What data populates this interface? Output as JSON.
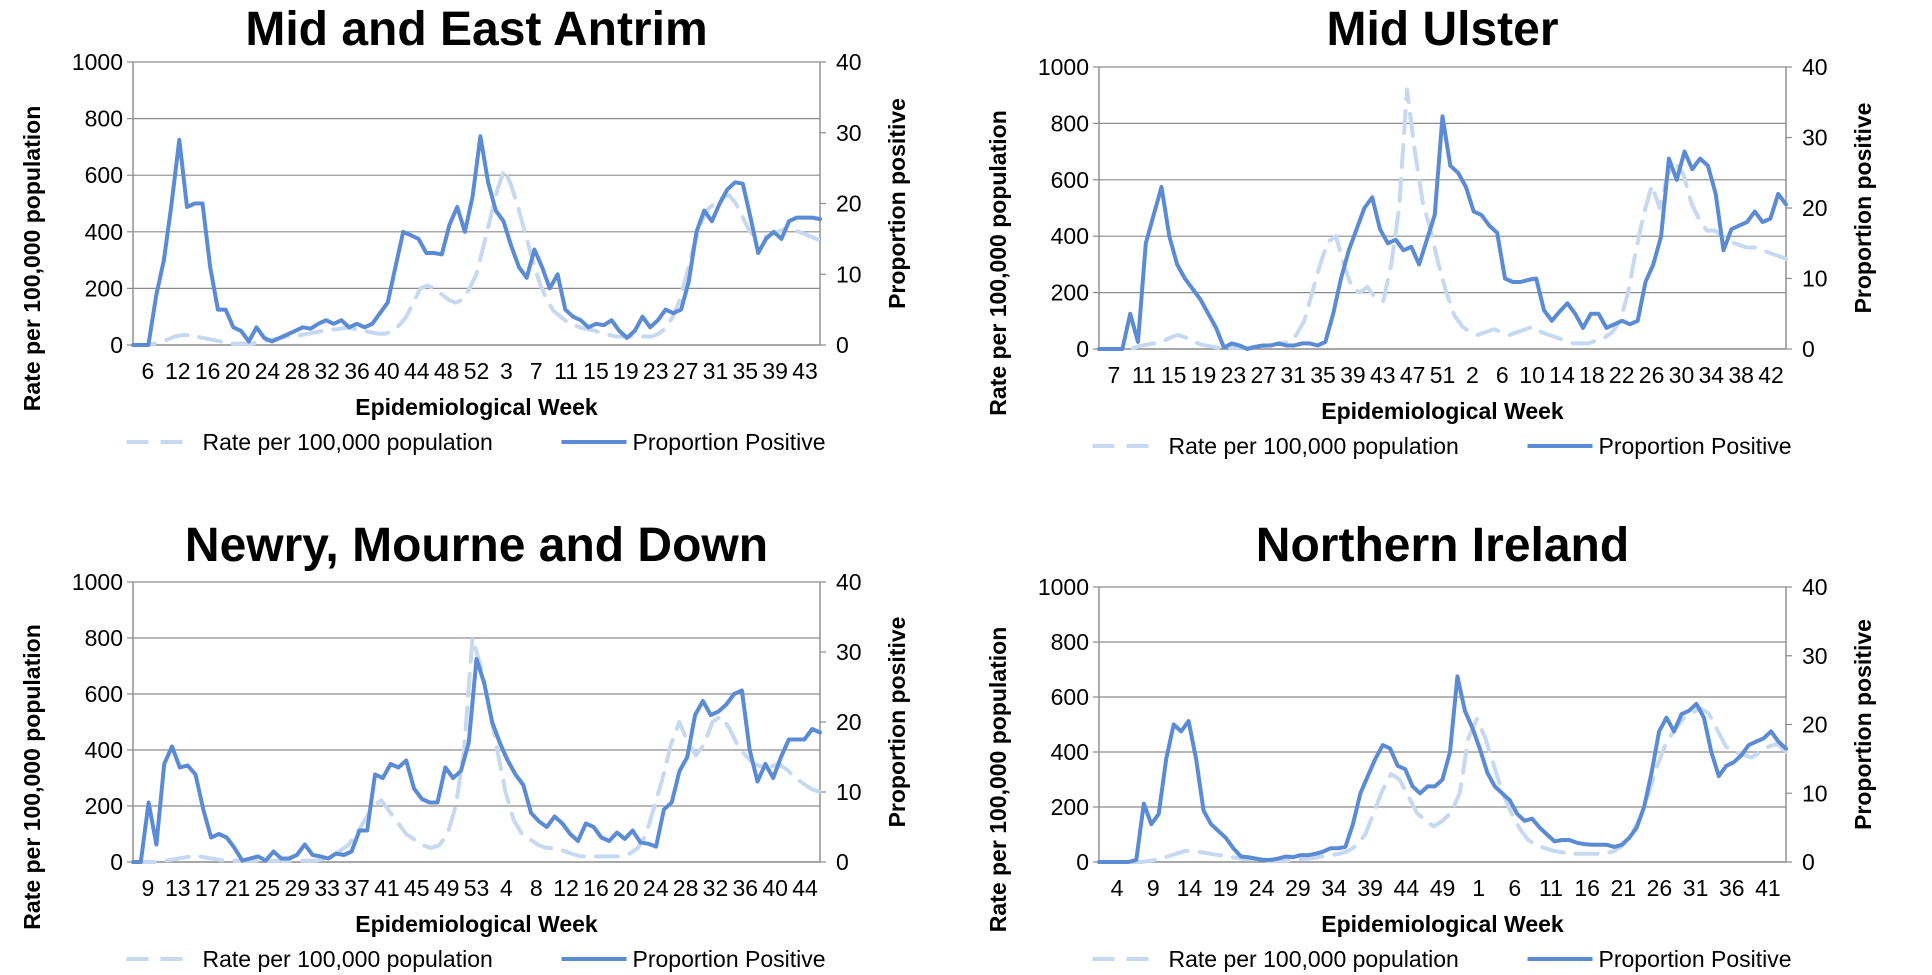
{
  "chart_data": [
    {
      "type": "line",
      "title": "Mid and East Antrim",
      "xlabel": "Epidemiological Week",
      "ylabel": "Rate per 100,000 population",
      "y2label": "Proportion positive",
      "ylim": [
        0,
        1000
      ],
      "y2lim": [
        0,
        40
      ],
      "yticks": [
        "0",
        "200",
        "400",
        "600",
        "800",
        "1000"
      ],
      "y2ticks": [
        "0",
        "10",
        "20",
        "30",
        "40"
      ],
      "x_tick_labels": [
        "6",
        "12",
        "16",
        "20",
        "24",
        "28",
        "32",
        "36",
        "40",
        "44",
        "48",
        "52",
        "3",
        "7",
        "11",
        "15",
        "19",
        "23",
        "27",
        "31",
        "35",
        "39",
        "43"
      ],
      "grid": true,
      "legend_position": "bottom",
      "series": [
        {
          "name": "Rate per 100,000 population",
          "axis": "left",
          "style": "dashed",
          "color": "#c6d9f1",
          "values": [
            0,
            0,
            0,
            5,
            10,
            20,
            30,
            35,
            35,
            30,
            25,
            20,
            15,
            10,
            5,
            5,
            5,
            5,
            10,
            15,
            20,
            25,
            30,
            30,
            35,
            40,
            45,
            50,
            55,
            55,
            60,
            60,
            55,
            50,
            45,
            40,
            40,
            50,
            70,
            100,
            150,
            200,
            210,
            200,
            180,
            160,
            150,
            160,
            200,
            250,
            350,
            450,
            550,
            620,
            560,
            480,
            390,
            300,
            220,
            160,
            120,
            100,
            80,
            70,
            60,
            55,
            50,
            40,
            35,
            30,
            30,
            30,
            30,
            30,
            30,
            40,
            60,
            100,
            160,
            250,
            350,
            430,
            480,
            500,
            520,
            530,
            500,
            450,
            400,
            380,
            380,
            390,
            400,
            410,
            410,
            400,
            390,
            380,
            370
          ]
        },
        {
          "name": "Proportion Positive",
          "axis": "right",
          "style": "solid",
          "color": "#5b8bd5",
          "values": [
            0,
            0,
            0,
            7,
            12,
            20,
            29,
            19.5,
            20,
            20,
            11,
            5,
            5,
            2.5,
            2,
            0.5,
            2.5,
            1,
            0.5,
            1,
            1.5,
            2,
            2.5,
            2.3,
            3,
            3.5,
            3,
            3.5,
            2.5,
            3,
            2.5,
            3,
            4.5,
            6,
            11,
            16,
            15.5,
            15,
            13,
            13,
            12.8,
            17,
            19.5,
            16,
            21,
            29.5,
            23,
            19,
            17.5,
            14,
            11,
            9.5,
            13.5,
            11,
            8,
            10,
            5,
            4,
            3.5,
            2.5,
            3,
            2.8,
            3.5,
            2,
            1,
            2,
            4,
            2.5,
            3.5,
            5,
            4.5,
            5,
            9,
            16,
            19,
            17.5,
            20,
            22,
            23,
            22.8,
            18,
            13,
            15,
            16,
            15,
            17.5,
            18,
            18,
            18,
            17.8
          ]
        }
      ]
    },
    {
      "type": "line",
      "title": "Mid Ulster",
      "xlabel": "Epidemiological Week",
      "ylabel": "Rate per 100,000 population",
      "y2label": "Proportion positive",
      "ylim": [
        0,
        1000
      ],
      "y2lim": [
        0,
        40
      ],
      "yticks": [
        "0",
        "200",
        "400",
        "600",
        "800",
        "1000"
      ],
      "y2ticks": [
        "0",
        "10",
        "20",
        "30",
        "40"
      ],
      "x_tick_labels": [
        "7",
        "11",
        "15",
        "19",
        "23",
        "27",
        "31",
        "35",
        "39",
        "43",
        "47",
        "51",
        "2",
        "6",
        "10",
        "14",
        "18",
        "22",
        "26",
        "30",
        "34",
        "38",
        "42"
      ],
      "grid": true,
      "legend_position": "bottom",
      "series": [
        {
          "name": "Rate per 100,000 population",
          "axis": "left",
          "style": "dashed",
          "color": "#c6d9f1",
          "values": [
            0,
            0,
            0,
            0,
            0,
            10,
            15,
            20,
            25,
            40,
            50,
            40,
            25,
            15,
            10,
            5,
            5,
            5,
            5,
            5,
            10,
            10,
            15,
            20,
            25,
            50,
            100,
            200,
            300,
            380,
            400,
            300,
            220,
            200,
            220,
            180,
            170,
            300,
            500,
            920,
            700,
            520,
            420,
            300,
            200,
            120,
            80,
            60,
            50,
            60,
            70,
            60,
            50,
            60,
            70,
            80,
            60,
            50,
            40,
            30,
            20,
            20,
            20,
            30,
            40,
            60,
            100,
            200,
            350,
            480,
            580,
            500,
            620,
            660,
            620,
            520,
            460,
            420,
            420,
            400,
            380,
            370,
            360,
            360,
            350,
            340,
            330,
            320
          ]
        },
        {
          "name": "Proportion Positive",
          "axis": "right",
          "style": "solid",
          "color": "#5b8bd5",
          "values": [
            0,
            0,
            0,
            0,
            5,
            1,
            15,
            19,
            23,
            16,
            12,
            10,
            8.5,
            7,
            5,
            3,
            0.2,
            0.8,
            0.5,
            0,
            0.3,
            0.5,
            0.5,
            0.8,
            0.5,
            0.5,
            0.8,
            0.8,
            0.5,
            1,
            5,
            10,
            14,
            17,
            20,
            21.5,
            17,
            15,
            15.5,
            14,
            14.5,
            12,
            15.5,
            19,
            33,
            26,
            25,
            23,
            19.5,
            19,
            17.5,
            16.5,
            10,
            9.5,
            9.5,
            9.8,
            10,
            5.5,
            4,
            5.3,
            6.5,
            5,
            3,
            5,
            5,
            3,
            3.5,
            4,
            3.5,
            4,
            9.5,
            12,
            16,
            27,
            24,
            28,
            25.5,
            27,
            26,
            22,
            14,
            17,
            17.5,
            18,
            19.5,
            18,
            18.5,
            22,
            20.5
          ]
        }
      ]
    },
    {
      "type": "line",
      "title": "Newry, Mourne and Down",
      "xlabel": "Epidemiological Week",
      "ylabel": "Rate per 100,000 population",
      "y2label": "Proportion positive",
      "ylim": [
        0,
        1000
      ],
      "y2lim": [
        0,
        40
      ],
      "yticks": [
        "0",
        "200",
        "400",
        "600",
        "800",
        "1000"
      ],
      "y2ticks": [
        "0",
        "10",
        "20",
        "30",
        "40"
      ],
      "x_tick_labels": [
        "9",
        "13",
        "17",
        "21",
        "25",
        "29",
        "33",
        "37",
        "41",
        "45",
        "49",
        "53",
        "4",
        "8",
        "12",
        "16",
        "20",
        "24",
        "28",
        "32",
        "36",
        "40",
        "44"
      ],
      "grid": true,
      "legend_position": "bottom",
      "series": [
        {
          "name": "Rate per 100,000 population",
          "axis": "left",
          "style": "dashed",
          "color": "#c6d9f1",
          "values": [
            0,
            0,
            0,
            0,
            5,
            10,
            15,
            20,
            20,
            15,
            10,
            5,
            5,
            5,
            5,
            5,
            5,
            5,
            5,
            5,
            5,
            5,
            5,
            10,
            20,
            40,
            60,
            100,
            150,
            200,
            220,
            180,
            140,
            100,
            80,
            60,
            50,
            60,
            100,
            200,
            400,
            800,
            700,
            560,
            400,
            250,
            150,
            100,
            80,
            60,
            50,
            50,
            40,
            30,
            20,
            20,
            20,
            20,
            20,
            20,
            30,
            50,
            100,
            200,
            300,
            420,
            500,
            430,
            380,
            420,
            500,
            520,
            480,
            420,
            380,
            350,
            340,
            340,
            350,
            330,
            300,
            280,
            260,
            250
          ]
        },
        {
          "name": "Proportion Positive",
          "axis": "right",
          "style": "solid",
          "color": "#5b8bd5",
          "values": [
            0,
            0,
            8.5,
            2.5,
            14,
            16.5,
            13.5,
            13.8,
            12.5,
            7.5,
            3.5,
            4,
            3.5,
            2,
            0.2,
            0.5,
            0.8,
            0.2,
            1.5,
            0.5,
            0.5,
            1,
            2.5,
            1,
            0.8,
            0.5,
            1.2,
            1,
            1.5,
            4.5,
            4.5,
            12.5,
            12,
            14,
            13.5,
            14.5,
            10.5,
            9,
            8.5,
            8.5,
            13.5,
            12,
            13,
            17,
            29,
            25.5,
            20,
            17,
            14.5,
            12.5,
            11,
            7,
            5.8,
            5,
            6.5,
            5.5,
            4,
            3,
            5.5,
            5,
            3.5,
            3,
            4.2,
            3.3,
            4.5,
            2.8,
            2.6,
            2.2,
            7.5,
            8.5,
            13,
            15,
            21,
            23,
            21,
            21.5,
            22.5,
            24,
            24.5,
            16,
            11.5,
            14,
            12,
            15,
            17.5,
            17.5,
            17.5,
            19,
            18.5
          ]
        }
      ]
    },
    {
      "type": "line",
      "title": "Northern Ireland",
      "xlabel": "Epidemiological Week",
      "ylabel": "Rate per 100,000 population",
      "y2label": "Proportion positive",
      "ylim": [
        0,
        1000
      ],
      "y2lim": [
        0,
        40
      ],
      "yticks": [
        "0",
        "200",
        "400",
        "600",
        "800",
        "1000"
      ],
      "y2ticks": [
        "0",
        "10",
        "20",
        "30",
        "40"
      ],
      "x_tick_labels": [
        "4",
        "9",
        "14",
        "19",
        "24",
        "29",
        "34",
        "39",
        "44",
        "49",
        "1",
        "6",
        "11",
        "16",
        "21",
        "26",
        "31",
        "36",
        "41"
      ],
      "grid": true,
      "legend_position": "bottom",
      "series": [
        {
          "name": "Rate per 100,000 population",
          "axis": "left",
          "style": "dashed",
          "color": "#c6d9f1",
          "values": [
            0,
            0,
            0,
            0,
            0,
            0,
            5,
            10,
            20,
            30,
            40,
            40,
            35,
            30,
            25,
            20,
            15,
            10,
            10,
            5,
            5,
            5,
            5,
            10,
            10,
            15,
            20,
            25,
            30,
            40,
            60,
            100,
            180,
            260,
            320,
            300,
            240,
            180,
            150,
            130,
            150,
            180,
            250,
            450,
            520,
            450,
            350,
            250,
            180,
            120,
            80,
            60,
            50,
            40,
            35,
            30,
            30,
            30,
            30,
            30,
            40,
            60,
            100,
            160,
            250,
            350,
            430,
            480,
            520,
            540,
            560,
            540,
            480,
            420,
            400,
            390,
            380,
            400,
            420,
            430,
            400
          ]
        },
        {
          "name": "Proportion Positive",
          "axis": "right",
          "style": "solid",
          "color": "#5b8bd5",
          "values": [
            0,
            0,
            0,
            0,
            0,
            0.3,
            8.5,
            5.5,
            7,
            15,
            20,
            19,
            20.5,
            15,
            7.5,
            5.5,
            4.5,
            3.5,
            2,
            0.8,
            0.7,
            0.5,
            0.3,
            0.3,
            0.5,
            0.8,
            0.7,
            1,
            1,
            1.2,
            1.5,
            2,
            2,
            2.2,
            5.5,
            10,
            12.5,
            15,
            17,
            16.5,
            14,
            13.5,
            11,
            10,
            11,
            11,
            12,
            16,
            27,
            22,
            19.5,
            16.5,
            13,
            11,
            10,
            9,
            7,
            6,
            6.3,
            5,
            4,
            3,
            3.2,
            3.2,
            2.8,
            2.6,
            2.5,
            2.5,
            2.5,
            2.2,
            2.5,
            3.5,
            5,
            8,
            13,
            19,
            21,
            19,
            21.5,
            22,
            23,
            21,
            16,
            12.5,
            14,
            14.5,
            15.5,
            17,
            17.5,
            18,
            19,
            17.5,
            16.5
          ]
        }
      ]
    }
  ]
}
